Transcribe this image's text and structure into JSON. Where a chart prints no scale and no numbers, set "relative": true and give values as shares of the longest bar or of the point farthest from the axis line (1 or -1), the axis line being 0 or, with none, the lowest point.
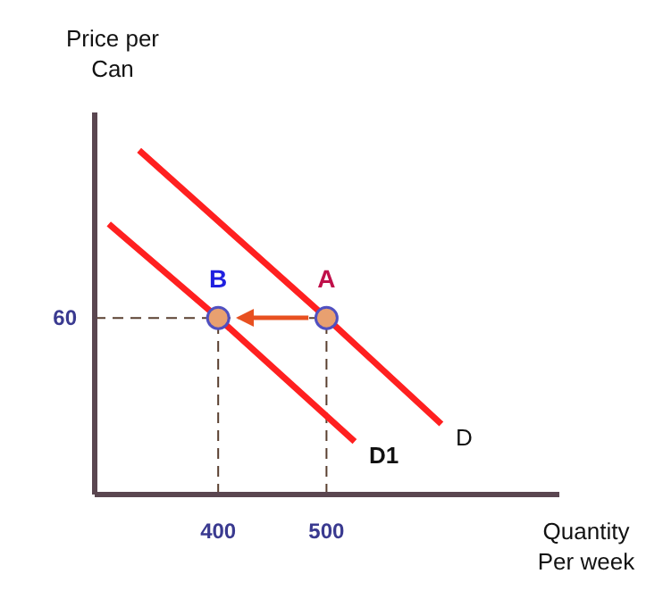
{
  "chart_data": {
    "type": "line",
    "relative": true,
    "xlabel": "Quantity\nPer week",
    "ylabel": "Price per\nCan",
    "xlim": [
      286,
      715
    ],
    "xticks": [
      400,
      500
    ],
    "marker": "none",
    "series": [
      {
        "name": "D",
        "color": "#ff2020",
        "x": [
          327,
          500,
          606
        ],
        "values": [
          1,
          0.513,
          0.205
        ]
      },
      {
        "name": "D1",
        "color": "#ff2020",
        "x": [
          299,
          400,
          526
        ],
        "values": [
          0.786,
          0.513,
          0.154
        ]
      },
      {
        "type": "scatter",
        "color": "#e8a070",
        "x": [
          400,
          500
        ],
        "values": [
          0.513,
          0.513
        ],
        "marker": "circle"
      }
    ],
    "ref_lines": [
      {
        "axis": "y",
        "value": 0.513,
        "line_style": "dashed",
        "color": "#5a4030"
      },
      {
        "axis": "x",
        "value": 400,
        "line_style": "dashed",
        "color": "#5a4030"
      },
      {
        "axis": "x",
        "value": 500,
        "line_style": "dashed",
        "color": "#5a4030"
      }
    ],
    "annotations": [
      {
        "text": "B",
        "x": 400,
        "y": 0.513
      },
      {
        "text": "A",
        "x": 500,
        "y": 0.513
      },
      "60"
    ]
  }
}
